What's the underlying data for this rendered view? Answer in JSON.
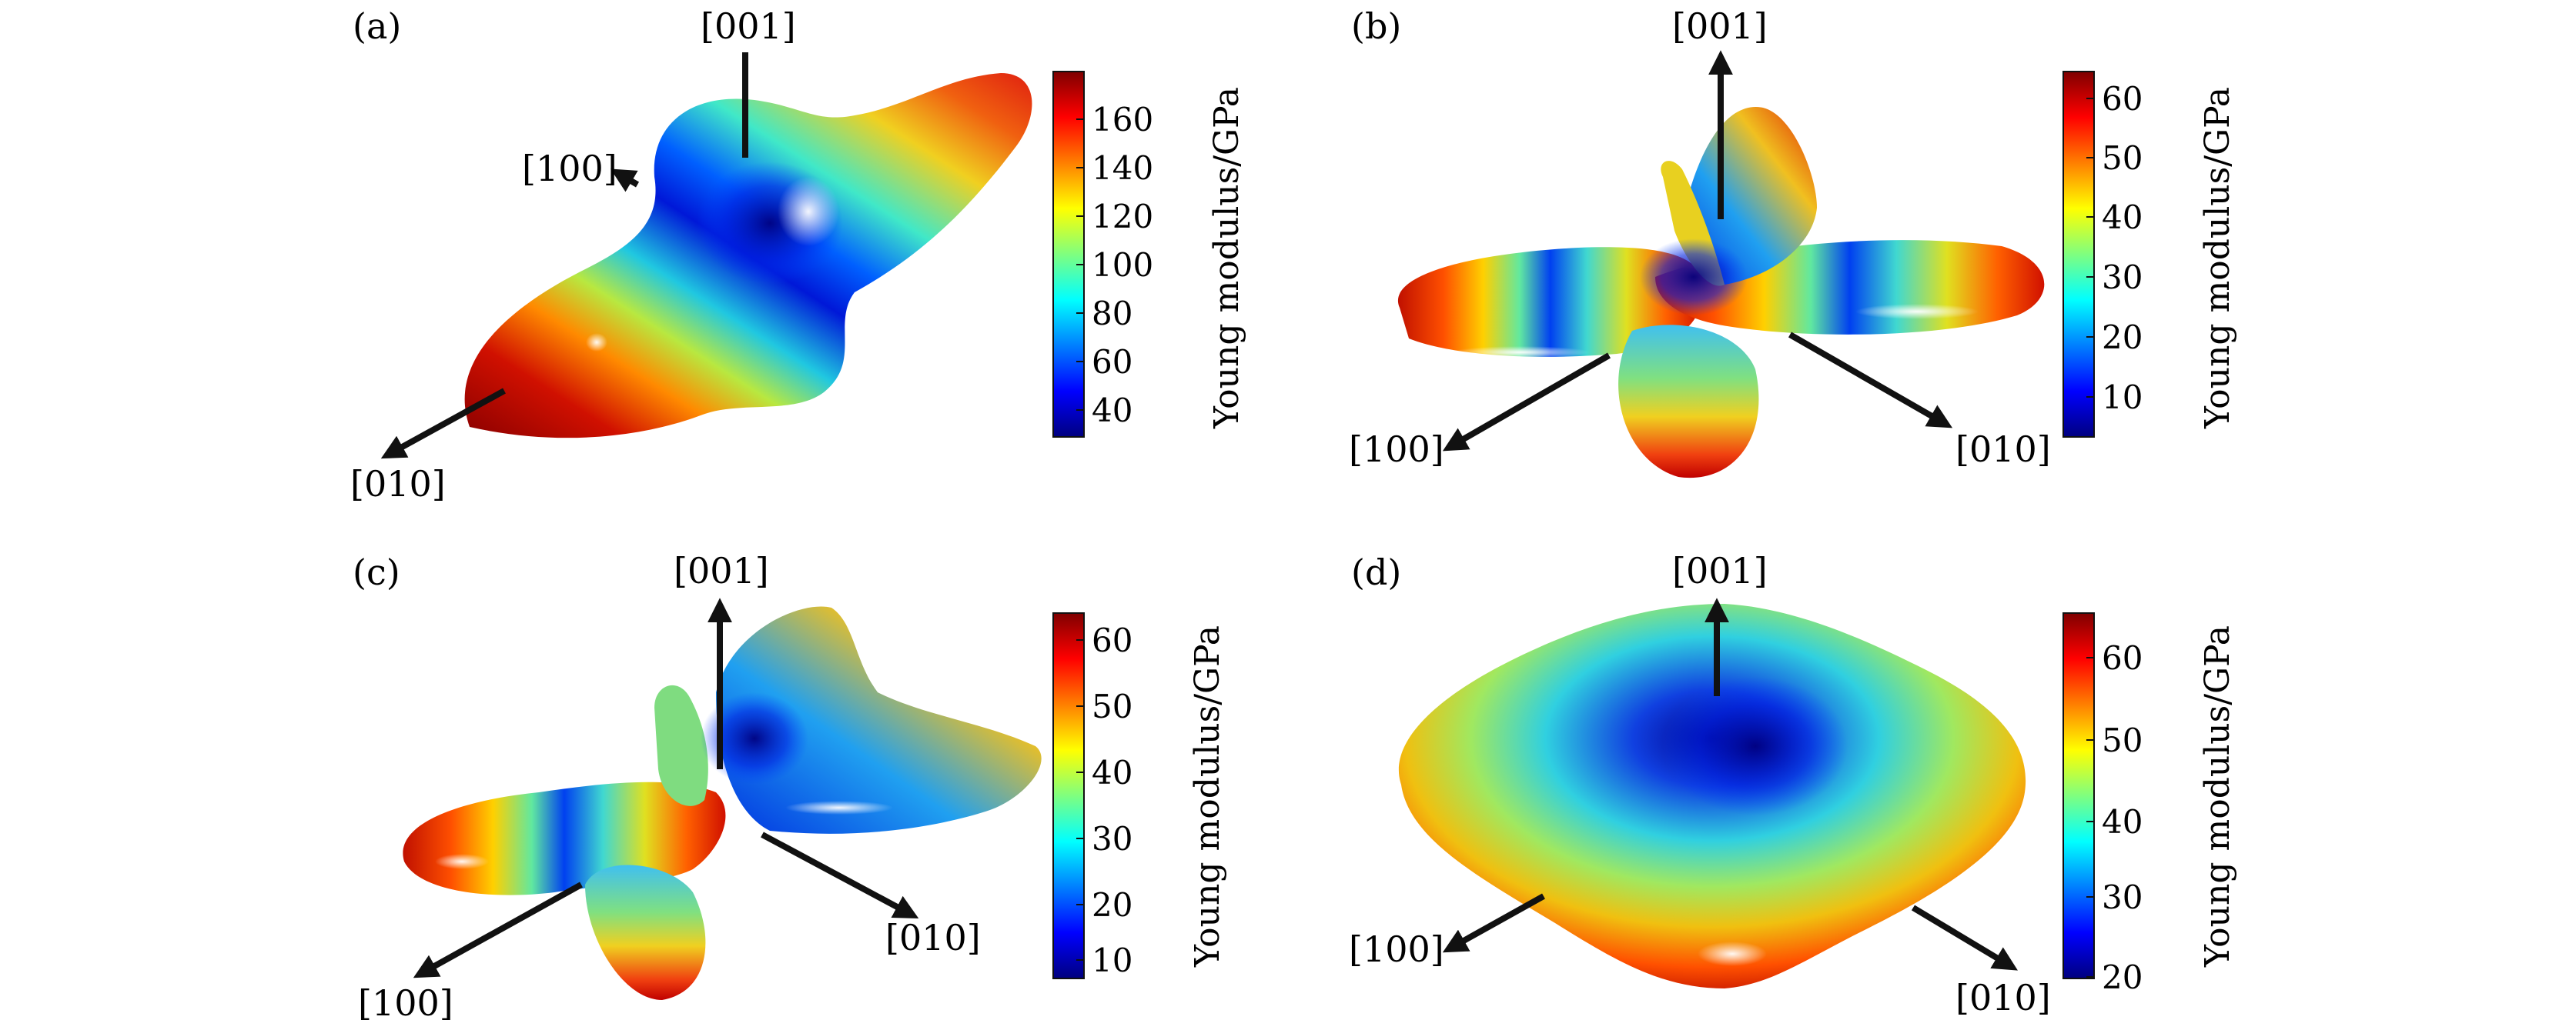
{
  "figure": {
    "panels": [
      {
        "label": "(a)",
        "axes": {
          "z": "[001]",
          "x": "[100]",
          "y": "[010]"
        },
        "colorbar": {
          "title": "Young modulus/GPa",
          "ticks": [
            "160",
            "140",
            "120",
            "100",
            "80",
            "60",
            "40"
          ]
        }
      },
      {
        "label": "(b)",
        "axes": {
          "z": "[001]",
          "x": "[100]",
          "y": "[010]"
        },
        "colorbar": {
          "title": "Young modulus/GPa",
          "ticks": [
            "60",
            "50",
            "40",
            "30",
            "20",
            "10"
          ]
        }
      },
      {
        "label": "(c)",
        "axes": {
          "z": "[001]",
          "x": "[100]",
          "y": "[010]"
        },
        "colorbar": {
          "title": "Young modulus/GPa",
          "ticks": [
            "60",
            "50",
            "40",
            "30",
            "20",
            "10"
          ]
        }
      },
      {
        "label": "(d)",
        "axes": {
          "z": "[001]",
          "x": "[100]",
          "y": "[010]"
        },
        "colorbar": {
          "title": "Young modulus/GPa",
          "ticks": [
            "60",
            "50",
            "40",
            "30",
            "20"
          ]
        }
      }
    ],
    "colormap": [
      "#00007f",
      "#0000ff",
      "#007fff",
      "#00ffff",
      "#7fff7f",
      "#ffff00",
      "#ff7f00",
      "#ff0000",
      "#7f0000"
    ]
  }
}
